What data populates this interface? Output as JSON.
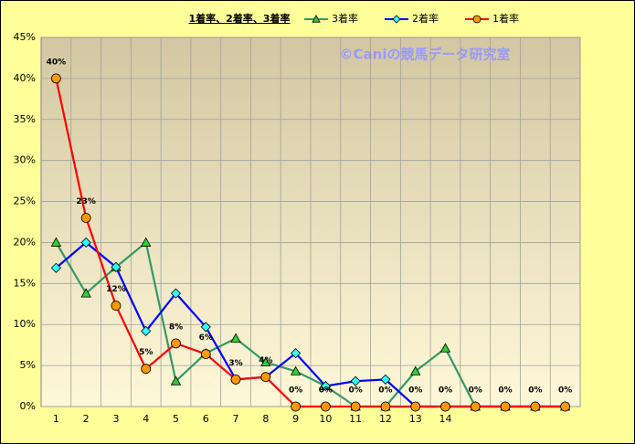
{
  "chart_data": {
    "type": "line",
    "title": "1着率、2着率、3着率",
    "watermark": "©Caniの競馬データ研究室",
    "categories": [
      "1",
      "2",
      "3",
      "4",
      "5",
      "6",
      "7",
      "8",
      "9",
      "10",
      "11",
      "12",
      "13",
      "14",
      null,
      null,
      null,
      null
    ],
    "series": [
      {
        "name": "3着率",
        "color": "#339966",
        "marker": "triangle",
        "marker_color": "#33cc33",
        "values": [
          20,
          13.8,
          17,
          20,
          3.1,
          6.5,
          8.3,
          5.4,
          4.3,
          2.5,
          0,
          0,
          4.3,
          7.1,
          0,
          0,
          0,
          0
        ]
      },
      {
        "name": "2着率",
        "color": "#0000ff",
        "marker": "diamond",
        "marker_color": "#33ffff",
        "values": [
          16.9,
          20,
          17,
          9.2,
          13.8,
          9.7,
          3.3,
          3.6,
          6.5,
          2.5,
          3.1,
          3.3,
          0,
          0,
          0,
          0,
          0,
          0
        ]
      },
      {
        "name": "1着率",
        "color": "#ff0000",
        "marker": "circle",
        "marker_color": "#ff9900",
        "values": [
          40,
          23,
          12.3,
          4.6,
          7.7,
          6.4,
          3.3,
          3.6,
          0,
          0,
          0,
          0,
          0,
          0,
          0,
          0,
          0,
          0
        ],
        "value_labels": [
          "40%",
          "23%",
          "12%",
          "5%",
          "8%",
          "6%",
          "3%",
          "4%",
          "0%",
          "0%",
          "0%",
          "0%",
          "0%",
          "0%",
          "0%",
          "0%",
          "0%",
          "0%"
        ]
      }
    ],
    "ylim": [
      0,
      45
    ],
    "yticks": [
      {
        "value": 0,
        "label": "0%"
      },
      {
        "value": 5,
        "label": "5%"
      },
      {
        "value": 10,
        "label": "10%"
      },
      {
        "value": 15,
        "label": "15%"
      },
      {
        "value": 20,
        "label": "20%"
      },
      {
        "value": 25,
        "label": "25%"
      },
      {
        "value": 30,
        "label": "30%"
      },
      {
        "value": 35,
        "label": "35%"
      },
      {
        "value": 40,
        "label": "40%"
      },
      {
        "value": 45,
        "label": "45%"
      }
    ],
    "grid": true
  }
}
